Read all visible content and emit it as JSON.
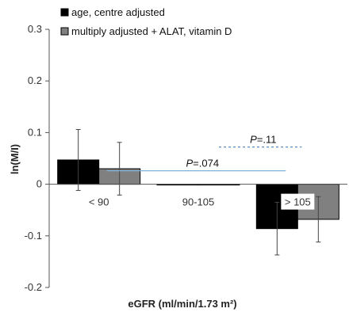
{
  "chart_data": {
    "type": "bar",
    "title": "",
    "xlabel": "eGFR (ml/min/1.73 m²)",
    "ylabel": "ln(M/I)",
    "ylim": [
      -0.2,
      0.3
    ],
    "yticks": [
      -0.2,
      -0.1,
      0,
      0.1,
      0.2,
      0.3
    ],
    "ytick_labels": [
      "-0.2",
      "-0.1",
      "0",
      "0.1",
      "0.2",
      "0.3"
    ],
    "categories": [
      "< 90",
      "90-105",
      "> 105"
    ],
    "series": [
      {
        "name": "age, centre adjusted",
        "color": "#000000",
        "values": [
          0.047,
          0.0,
          -0.086
        ],
        "err_low": [
          -0.012,
          null,
          -0.137
        ],
        "err_high": [
          0.106,
          null,
          -0.035
        ]
      },
      {
        "name": "multiply adjusted + ALAT, vitamin D",
        "color": "#808080",
        "values": [
          0.03,
          0.0,
          -0.068
        ],
        "err_low": [
          -0.021,
          null,
          -0.112
        ],
        "err_high": [
          0.081,
          null,
          -0.024
        ]
      }
    ],
    "legend_position": "top-left",
    "grid": false,
    "annotations": [
      {
        "label": "P",
        "text": "=.074",
        "y": 0.026,
        "x_from": "< 90",
        "x_to": "> 105",
        "style": "solid",
        "color": "#7fb2d9"
      },
      {
        "label": "P",
        "text": "=.11",
        "y": 0.072,
        "x_from": "90-105",
        "x_to": "> 105",
        "style": "dashed",
        "color": "#5b8fc4"
      }
    ]
  }
}
